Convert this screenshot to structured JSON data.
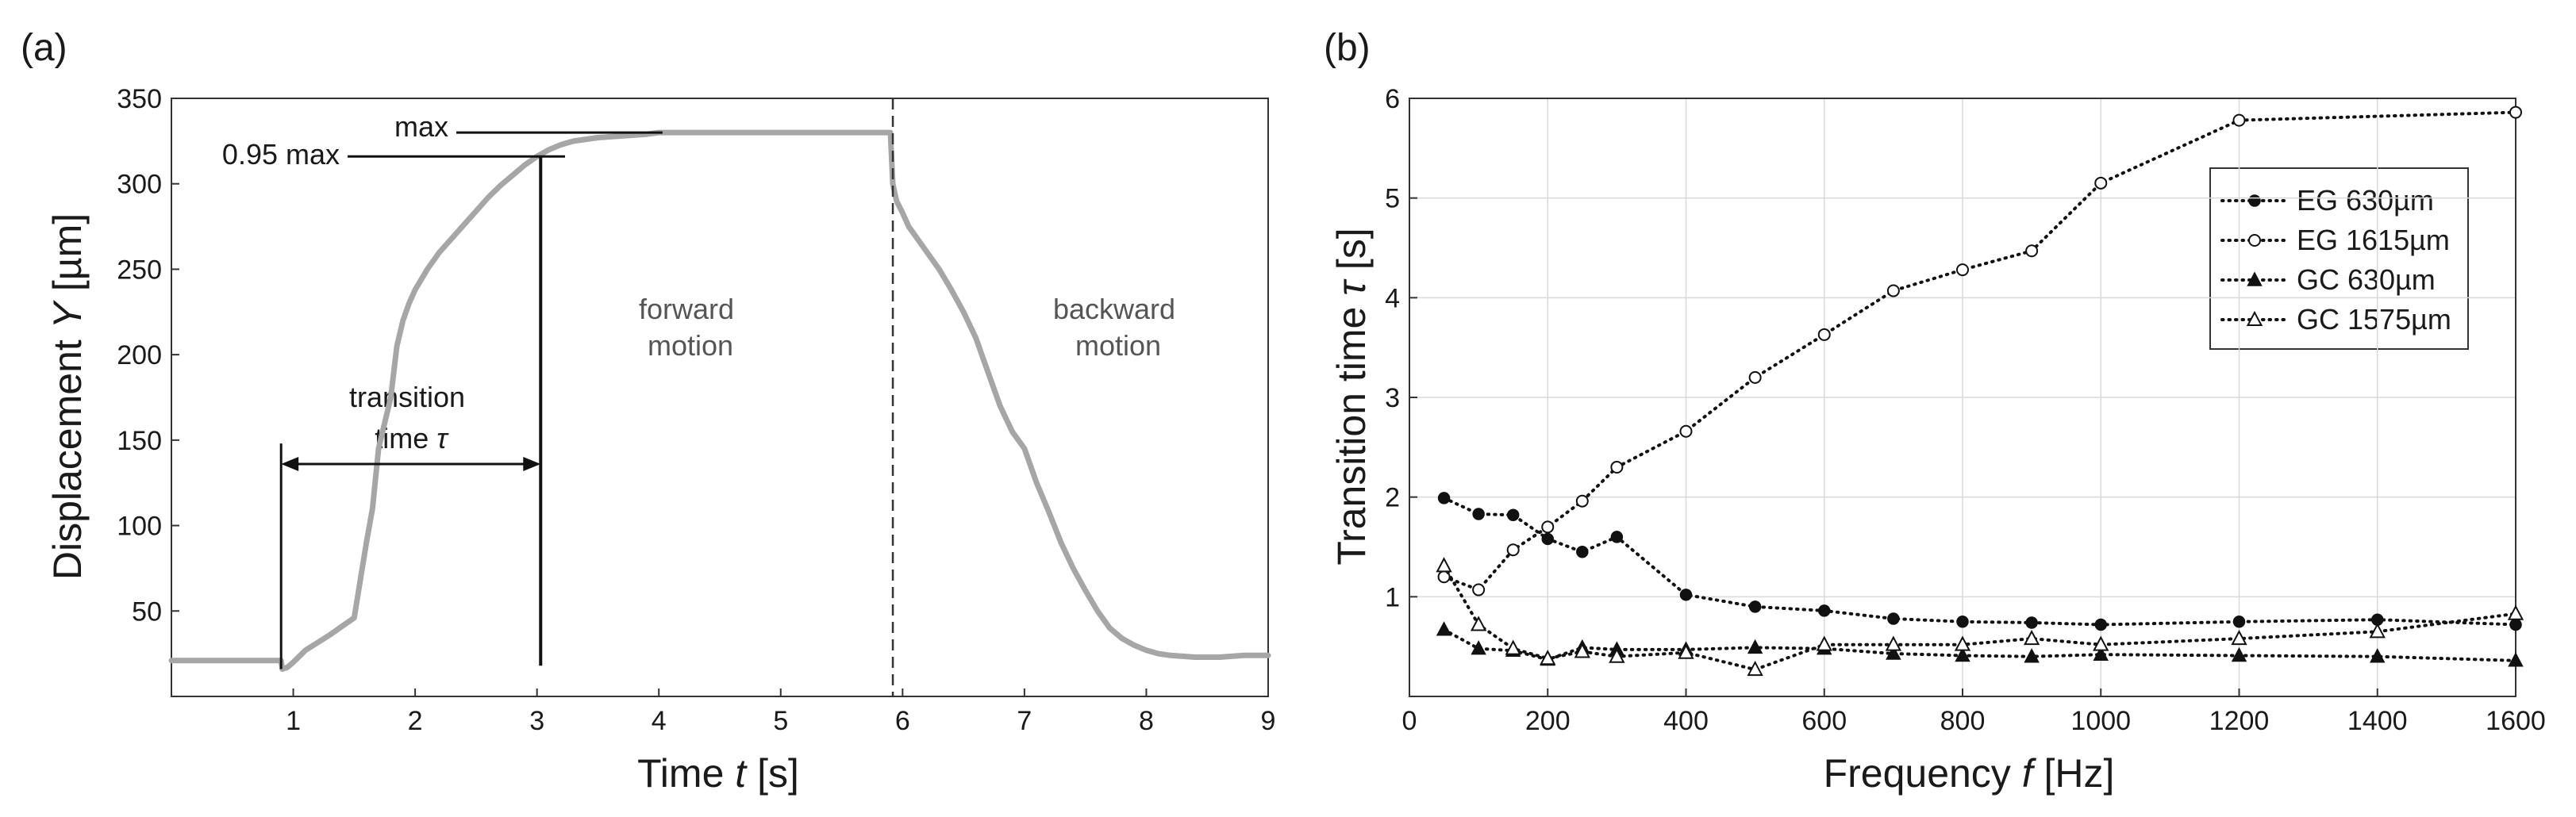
{
  "chart_data": [
    {
      "panel_label": "(a)",
      "type": "line",
      "xlabel": "Time ",
      "xlabel_var": "t",
      "xlabel_unit": " [s]",
      "ylabel": "Displacement ",
      "ylabel_var": "Y",
      "ylabel_unit": " [µm]",
      "xlim": [
        0,
        9
      ],
      "ylim": [
        0,
        350
      ],
      "xticks": [
        1,
        2,
        3,
        4,
        5,
        6,
        7,
        8,
        9
      ],
      "yticks": [
        50,
        100,
        150,
        200,
        250,
        300,
        350
      ],
      "grid": false,
      "series": [
        {
          "name": "displacement",
          "color": "#a6a6a6",
          "x": [
            0,
            0.9,
            0.91,
            0.95,
            1.0,
            1.1,
            1.3,
            1.5,
            1.6,
            1.65,
            1.7,
            1.8,
            1.85,
            1.9,
            1.95,
            2.0,
            2.1,
            2.2,
            2.3,
            2.4,
            2.5,
            2.6,
            2.7,
            2.8,
            2.9,
            3.0,
            3.1,
            3.2,
            3.3,
            3.5,
            3.7,
            3.9,
            4.0,
            4.2,
            4.5,
            5.0,
            5.5,
            5.9,
            5.92,
            5.95,
            6.0,
            6.05,
            6.1,
            6.2,
            6.3,
            6.4,
            6.5,
            6.6,
            6.7,
            6.8,
            6.9,
            7.0,
            7.1,
            7.2,
            7.3,
            7.4,
            7.5,
            7.6,
            7.7,
            7.8,
            7.9,
            8.0,
            8.1,
            8.2,
            8.4,
            8.6,
            8.8,
            9.0
          ],
          "y": [
            21,
            21,
            16,
            17,
            20,
            27,
            36,
            46,
            90,
            110,
            145,
            175,
            205,
            220,
            230,
            238,
            250,
            260,
            268,
            276,
            284,
            292,
            299,
            305,
            311,
            316,
            320,
            323,
            325,
            327,
            328,
            329,
            330,
            330,
            330,
            330,
            330,
            330,
            300,
            290,
            283,
            275,
            270,
            260,
            250,
            238,
            225,
            210,
            190,
            170,
            155,
            145,
            125,
            108,
            90,
            75,
            62,
            50,
            40,
            34,
            30,
            27,
            25,
            24,
            23,
            23,
            24,
            24
          ]
        }
      ],
      "annotations": {
        "max_label": "max",
        "max_value": 330,
        "p95_label": "0.95 max",
        "p95_value": 316,
        "start_time": 0.9,
        "end_time": 3.03,
        "switch_time": 5.92,
        "transition_line1": "transition",
        "transition_line2": "time ",
        "transition_var": "τ",
        "forward_line1": "forward",
        "forward_line2": "motion",
        "backward_line1": "backward",
        "backward_line2": "motion"
      }
    },
    {
      "panel_label": "(b)",
      "type": "line",
      "xlabel": "Frequency ",
      "xlabel_var": "f",
      "xlabel_unit": " [Hz]",
      "ylabel": "Transition time ",
      "ylabel_var": "τ",
      "ylabel_unit": " [s]",
      "xlim": [
        0,
        1600
      ],
      "ylim": [
        0,
        6
      ],
      "xticks": [
        0,
        200,
        400,
        600,
        800,
        1000,
        1200,
        1400,
        1600
      ],
      "yticks": [
        1,
        2,
        3,
        4,
        5,
        6
      ],
      "grid": true,
      "legend_position": "top-right",
      "series": [
        {
          "name": "EG 630µm",
          "marker": "filled-circle",
          "x": [
            50,
            100,
            150,
            200,
            250,
            300,
            400,
            500,
            600,
            700,
            800,
            900,
            1000,
            1200,
            1400,
            1600
          ],
          "y": [
            1.99,
            1.83,
            1.82,
            1.58,
            1.45,
            1.6,
            1.02,
            0.9,
            0.86,
            0.78,
            0.75,
            0.74,
            0.72,
            0.75,
            0.77,
            0.72
          ]
        },
        {
          "name": "EG 1615µm",
          "marker": "open-circle",
          "x": [
            50,
            100,
            150,
            200,
            250,
            300,
            400,
            500,
            600,
            700,
            800,
            900,
            1000,
            1200,
            1600
          ],
          "y": [
            1.2,
            1.07,
            1.47,
            1.7,
            1.96,
            2.3,
            2.66,
            3.2,
            3.63,
            4.07,
            4.28,
            4.47,
            5.15,
            5.78,
            5.86
          ]
        },
        {
          "name": "GC 630µm",
          "marker": "filled-triangle",
          "x": [
            50,
            100,
            150,
            200,
            250,
            300,
            400,
            500,
            600,
            700,
            800,
            900,
            1000,
            1200,
            1400,
            1600
          ],
          "y": [
            0.67,
            0.48,
            0.46,
            0.37,
            0.49,
            0.47,
            0.47,
            0.49,
            0.48,
            0.43,
            0.41,
            0.4,
            0.42,
            0.41,
            0.4,
            0.36
          ]
        },
        {
          "name": "GC 1575µm",
          "marker": "open-triangle",
          "x": [
            50,
            100,
            150,
            200,
            250,
            300,
            400,
            500,
            600,
            700,
            800,
            900,
            1000,
            1200,
            1400,
            1600
          ],
          "y": [
            1.31,
            0.72,
            0.48,
            0.38,
            0.45,
            0.4,
            0.44,
            0.27,
            0.52,
            0.52,
            0.52,
            0.58,
            0.52,
            0.58,
            0.65,
            0.83
          ]
        }
      ]
    }
  ]
}
